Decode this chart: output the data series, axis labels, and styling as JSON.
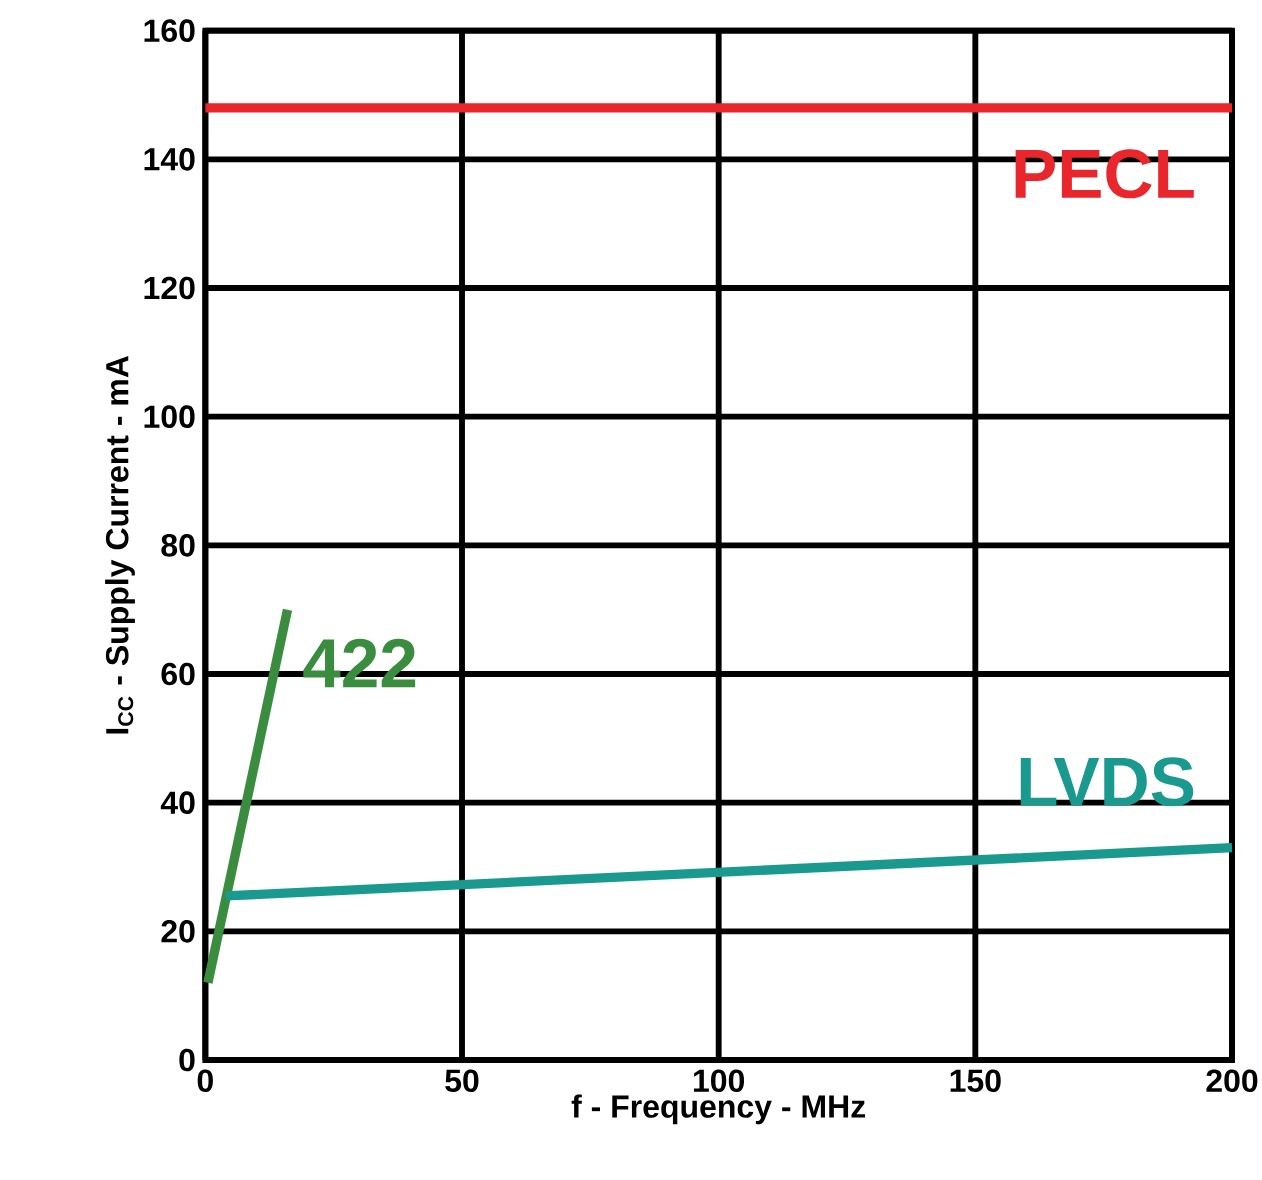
{
  "chart_data": {
    "type": "line",
    "xlabel": "f - Frequency - MHz",
    "ylabel": "I$_{CC}$ - Supply Current - mA",
    "xlim": [
      0,
      200
    ],
    "ylim": [
      0,
      160
    ],
    "xticks": [
      0,
      50,
      100,
      150,
      200
    ],
    "yticks": [
      0,
      20,
      40,
      60,
      80,
      100,
      120,
      140,
      160
    ],
    "grid": true,
    "legend": false,
    "marker": "none",
    "line_style": "solid",
    "series": [
      {
        "name": "PECL",
        "color": "#e8262b",
        "x": [
          0,
          200
        ],
        "values": [
          148,
          148
        ]
      },
      {
        "name": "422",
        "color": "#3a8c3f",
        "x": [
          0.5,
          16
        ],
        "values": [
          12,
          70
        ]
      },
      {
        "name": "LVDS",
        "color": "#1a9a8e",
        "x": [
          4,
          200
        ],
        "values": [
          25.5,
          33
        ]
      }
    ]
  }
}
